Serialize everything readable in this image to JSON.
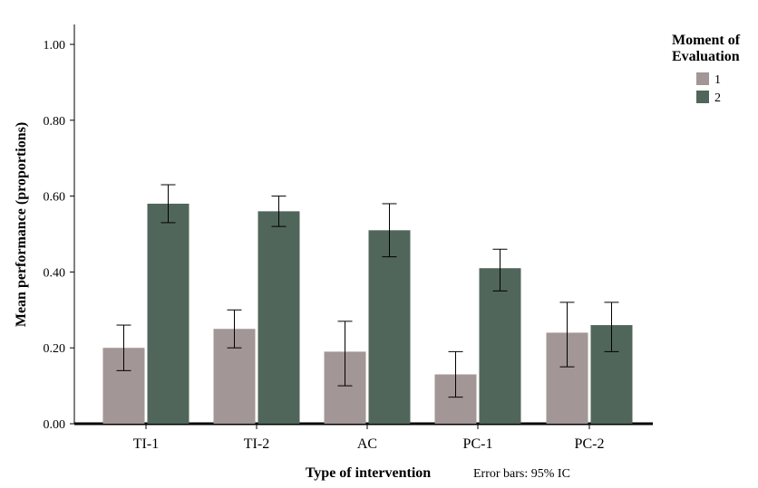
{
  "chart_data": {
    "type": "bar",
    "xlabel": "Type of intervention",
    "ylabel": "Mean performance (proportions)",
    "note": "Error bars: 95% IC",
    "ylim": [
      0,
      1.0
    ],
    "y_ticks": [
      "0.00",
      "0.20",
      "0.40",
      "0.60",
      "0.80",
      "1.00"
    ],
    "y_tick_values": [
      0,
      0.2,
      0.4,
      0.6,
      0.8,
      1.0
    ],
    "categories": [
      "TI-1",
      "TI-2",
      "AC",
      "PC-1",
      "PC-2"
    ],
    "legend": {
      "title_line1": "Moment of",
      "title_line2": "Evaluation",
      "position": "top-right"
    },
    "series": [
      {
        "name": "1",
        "color": "#a39696",
        "values": [
          0.2,
          0.25,
          0.19,
          0.13,
          0.24
        ],
        "ci_low": [
          0.14,
          0.2,
          0.1,
          0.07,
          0.15
        ],
        "ci_high": [
          0.26,
          0.3,
          0.27,
          0.19,
          0.32
        ]
      },
      {
        "name": "2",
        "color": "#51665b",
        "values": [
          0.58,
          0.56,
          0.51,
          0.41,
          0.26
        ],
        "ci_low": [
          0.53,
          0.52,
          0.44,
          0.35,
          0.19
        ],
        "ci_high": [
          0.63,
          0.6,
          0.58,
          0.46,
          0.32
        ]
      }
    ]
  }
}
